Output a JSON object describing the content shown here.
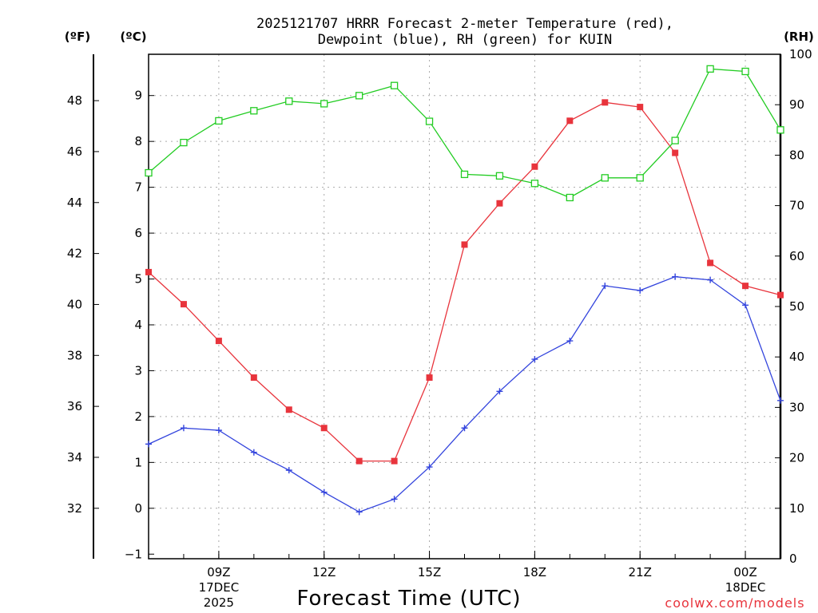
{
  "chart_data": {
    "type": "line",
    "title_line1": "2025121707 HRRR Forecast 2-meter Temperature (red),",
    "title_line2": "Dewpoint (blue), RH (green) for KUIN",
    "xlabel": "Forecast Time (UTC)",
    "credit": "coolwx.com/models",
    "left_outer_unit": "(ºF)",
    "left_inner_unit": "(ºC)",
    "right_unit": "(RH)",
    "x_hours": [
      7,
      8,
      9,
      10,
      11,
      12,
      13,
      14,
      15,
      16,
      17,
      18,
      19,
      20,
      21,
      22,
      23,
      24,
      25
    ],
    "xlim": [
      7,
      25
    ],
    "x_ticks": [
      {
        "hour": 9,
        "label": "09Z",
        "sub1": "17DEC",
        "sub2": "2025"
      },
      {
        "hour": 12,
        "label": "12Z",
        "sub1": "",
        "sub2": ""
      },
      {
        "hour": 15,
        "label": "15Z",
        "sub1": "",
        "sub2": ""
      },
      {
        "hour": 18,
        "label": "18Z",
        "sub1": "",
        "sub2": ""
      },
      {
        "hour": 21,
        "label": "21Z",
        "sub1": "",
        "sub2": ""
      },
      {
        "hour": 24,
        "label": "00Z",
        "sub1": "18DEC",
        "sub2": ""
      }
    ],
    "celsius_ylim": [
      -1.1,
      9.9
    ],
    "celsius_ticks": [
      -1,
      0,
      1,
      2,
      3,
      4,
      5,
      6,
      7,
      8,
      9
    ],
    "fahrenheit_ticks": [
      32,
      34,
      36,
      38,
      40,
      42,
      44,
      46,
      48
    ],
    "rh_ylim": [
      0,
      100
    ],
    "rh_ticks": [
      0,
      10,
      20,
      30,
      40,
      50,
      60,
      70,
      80,
      90,
      100
    ],
    "series": [
      {
        "name": "Temperature",
        "unit": "C",
        "color": "#e8343c",
        "marker": "filled-square",
        "values": [
          5.15,
          4.45,
          3.65,
          2.85,
          2.15,
          1.75,
          1.03,
          1.03,
          2.85,
          5.75,
          6.65,
          7.45,
          8.45,
          8.85,
          8.75,
          7.75,
          5.35,
          4.85,
          4.65
        ]
      },
      {
        "name": "Dewpoint",
        "unit": "C",
        "color": "#3344dd",
        "marker": "plus",
        "values": [
          1.4,
          1.75,
          1.7,
          1.22,
          0.83,
          0.35,
          -0.08,
          0.2,
          0.9,
          1.75,
          2.55,
          3.25,
          3.65,
          4.85,
          4.75,
          5.05,
          4.98,
          4.43,
          2.35
        ]
      },
      {
        "name": "RH",
        "unit": "%",
        "color": "#22cc22",
        "marker": "open-square",
        "values": [
          76.5,
          82.5,
          86.8,
          88.8,
          90.7,
          90.2,
          91.8,
          93.8,
          86.7,
          76.2,
          75.9,
          74.4,
          71.6,
          75.5,
          75.5,
          82.9,
          97.1,
          96.6,
          85.0
        ]
      }
    ]
  }
}
